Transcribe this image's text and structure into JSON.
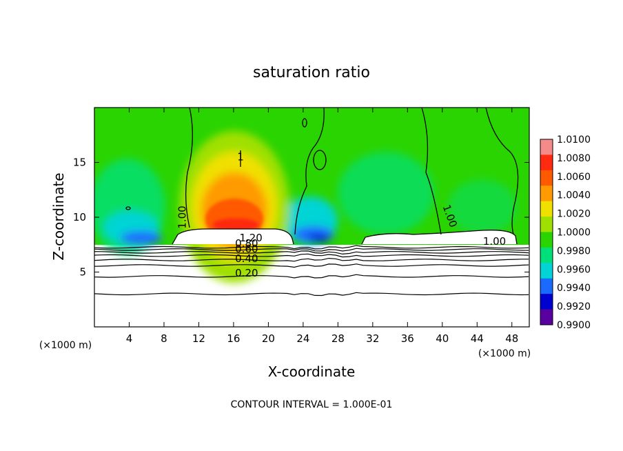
{
  "chart_data": {
    "type": "heatmap",
    "title": "saturation ratio",
    "xlabel": "X-coordinate",
    "ylabel": "Z-coordinate",
    "x_unit_label": "(×1000 m)",
    "y_unit_label": "(×1000 m)",
    "footer": "CONTOUR INTERVAL = 1.000E-01",
    "xlim": [
      0,
      50
    ],
    "ylim": [
      0,
      20
    ],
    "x_ticks": [
      "4",
      "8",
      "12",
      "16",
      "20",
      "24",
      "28",
      "32",
      "36",
      "40",
      "44",
      "48"
    ],
    "x_tick_values": [
      4,
      8,
      12,
      16,
      20,
      24,
      28,
      32,
      36,
      40,
      44,
      48
    ],
    "y_ticks": [
      "5",
      "10",
      "15"
    ],
    "y_tick_values": [
      5,
      10,
      15
    ],
    "colorbar": {
      "labels": [
        "1.0100",
        "1.0080",
        "1.0060",
        "1.0040",
        "1.0020",
        "1.0000",
        "0.9980",
        "0.9960",
        "0.9940",
        "0.9920",
        "0.9900"
      ],
      "colors": [
        "#f48a8a",
        "#ff2a10",
        "#ff5a00",
        "#ff9a00",
        "#f0e000",
        "#a0e000",
        "#2ad400",
        "#00e07a",
        "#00d4d4",
        "#1a6aff",
        "#0000d0",
        "#5a00a0"
      ]
    },
    "contour_labels": [
      {
        "text": "1.00",
        "x": 10.5,
        "z": 10.0
      },
      {
        "text": "1.00",
        "x": 40.5,
        "z": 10.0
      },
      {
        "text": "1.00",
        "x": 46.0,
        "z": 7.5
      },
      {
        "text": "1.20",
        "x": 18.0,
        "z": 7.8
      },
      {
        "text": "0.80",
        "x": 17.5,
        "z": 7.3
      },
      {
        "text": "0.60",
        "x": 17.5,
        "z": 6.8
      },
      {
        "text": "0.40",
        "x": 17.5,
        "z": 5.9
      },
      {
        "text": "0.20",
        "x": 17.5,
        "z": 4.6
      },
      {
        "text": "1",
        "x": 16.8,
        "z": 15.2
      }
    ],
    "low_contours_z": [
      3.0,
      4.6,
      5.6,
      6.1,
      6.5,
      6.8,
      7.05,
      7.25
    ]
  }
}
